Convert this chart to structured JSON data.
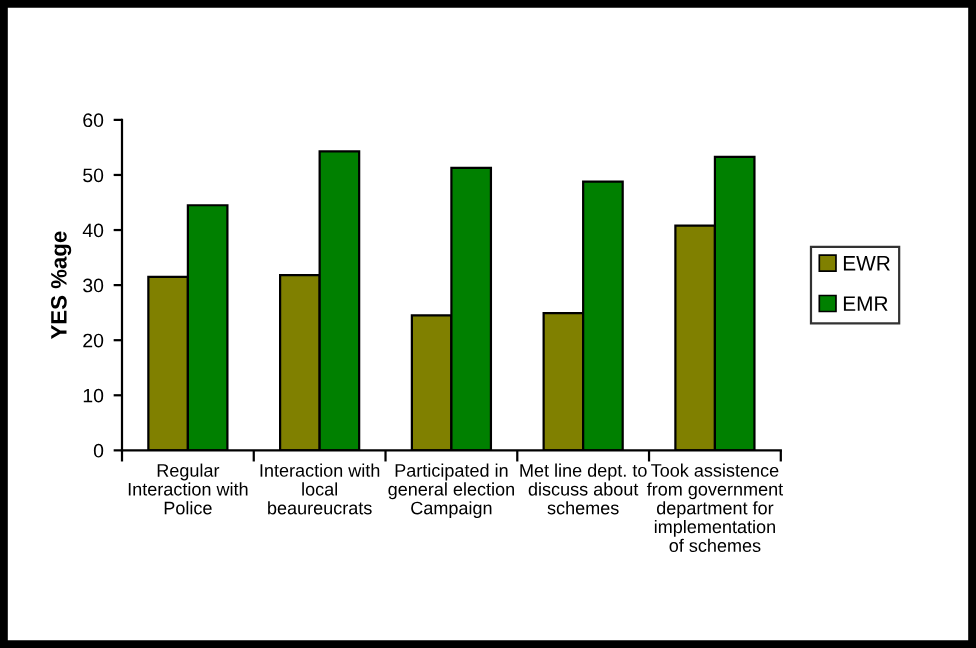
{
  "chart_data": {
    "type": "bar",
    "ylabel": "YES %age",
    "categories": [
      "Regular Interaction with Police",
      "Interaction with local beaureucrats",
      "Participated in general election Campaign",
      "Met line dept. to discuss about schemes",
      "Took assistence from government department for implementation of schemes"
    ],
    "series": [
      {
        "name": "EWR",
        "color": "#808000",
        "values": [
          31.5,
          31.8,
          24.5,
          24.9,
          40.8
        ]
      },
      {
        "name": "EMR",
        "color": "#008000",
        "values": [
          44.5,
          54.3,
          51.3,
          48.8,
          53.3
        ]
      }
    ],
    "ylim": [
      0,
      60
    ],
    "yticks": [
      0,
      10,
      20,
      30,
      40,
      50,
      60
    ],
    "grid": false,
    "legend": "right"
  }
}
